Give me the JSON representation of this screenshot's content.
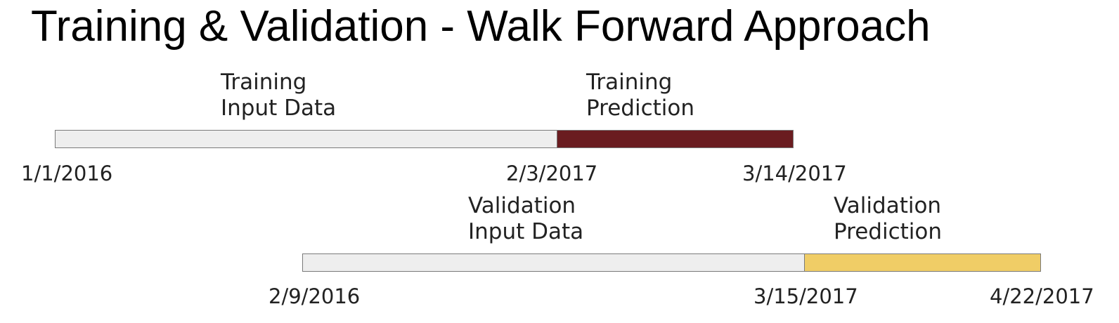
{
  "title": "Training & Validation - Walk Forward Approach",
  "training": {
    "input_label_1": "Training",
    "input_label_2": "Input Data",
    "prediction_label_1": "Training",
    "prediction_label_2": "Prediction",
    "start_date": "1/1/2016",
    "split_date": "2/3/2017",
    "end_date": "3/14/2017",
    "input_color": "#eeeeee",
    "prediction_color": "#6a1c20"
  },
  "validation": {
    "input_label_1": "Validation",
    "input_label_2": "Input Data",
    "prediction_label_1": "Validation",
    "prediction_label_2": "Prediction",
    "start_date": "2/9/2016",
    "split_date": "3/15/2017",
    "end_date": "4/22/2017",
    "input_color": "#eeeeee",
    "prediction_color": "#f0cd66"
  }
}
